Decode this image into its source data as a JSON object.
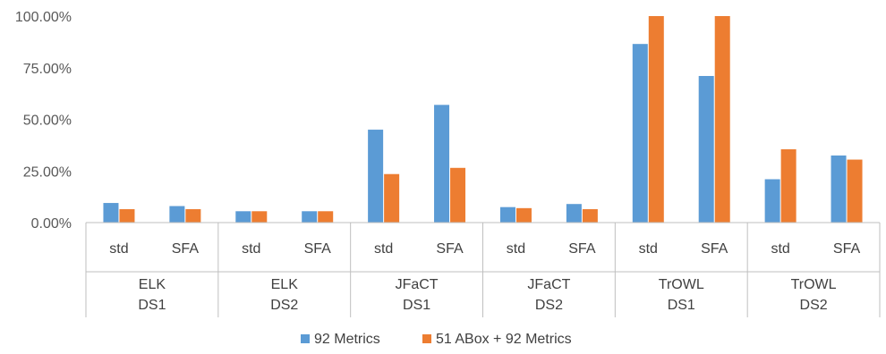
{
  "chart_data": {
    "type": "bar",
    "categories": [
      {
        "sub": "std",
        "group": [
          "ELK",
          "DS1"
        ]
      },
      {
        "sub": "SFA",
        "group": [
          "ELK",
          "DS1"
        ]
      },
      {
        "sub": "std",
        "group": [
          "ELK",
          "DS2"
        ]
      },
      {
        "sub": "SFA",
        "group": [
          "ELK",
          "DS2"
        ]
      },
      {
        "sub": "std",
        "group": [
          "JFaCT",
          "DS1"
        ]
      },
      {
        "sub": "SFA",
        "group": [
          "JFaCT",
          "DS1"
        ]
      },
      {
        "sub": "std",
        "group": [
          "JFaCT",
          "DS2"
        ]
      },
      {
        "sub": "SFA",
        "group": [
          "JFaCT",
          "DS2"
        ]
      },
      {
        "sub": "std",
        "group": [
          "TrOWL",
          "DS1"
        ]
      },
      {
        "sub": "SFA",
        "group": [
          "TrOWL",
          "DS1"
        ]
      },
      {
        "sub": "std",
        "group": [
          "TrOWL",
          "DS2"
        ]
      },
      {
        "sub": "SFA",
        "group": [
          "TrOWL",
          "DS2"
        ]
      }
    ],
    "groups": [
      {
        "line1": "ELK",
        "line2": "DS1"
      },
      {
        "line1": "ELK",
        "line2": "DS2"
      },
      {
        "line1": "JFaCT",
        "line2": "DS1"
      },
      {
        "line1": "JFaCT",
        "line2": "DS2"
      },
      {
        "line1": "TrOWL",
        "line2": "DS1"
      },
      {
        "line1": "TrOWL",
        "line2": "DS2"
      }
    ],
    "series": [
      {
        "name": "92 Metrics",
        "color": "#5B9BD5",
        "values": [
          9.5,
          8.0,
          5.5,
          5.5,
          45.0,
          57.0,
          7.5,
          9.0,
          86.5,
          71.0,
          21.0,
          32.5
        ]
      },
      {
        "name": "51 ABox + 92 Metrics",
        "color": "#ED7D31",
        "values": [
          6.5,
          6.5,
          5.5,
          5.5,
          23.5,
          26.5,
          7.0,
          6.5,
          100.0,
          100.0,
          35.5,
          30.5
        ]
      }
    ],
    "yticks": [
      "0.00%",
      "25.00%",
      "50.00%",
      "75.00%",
      "100.00%"
    ],
    "ylim": [
      0,
      100
    ],
    "legend_position": "bottom",
    "grid": false
  }
}
